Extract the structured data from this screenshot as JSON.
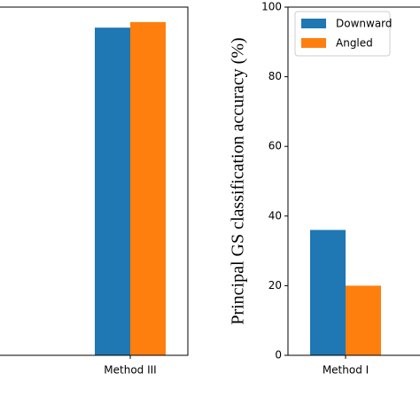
{
  "chart_data": [
    {
      "type": "bar",
      "categories": [
        "Method III"
      ],
      "ylim": [
        0,
        100
      ],
      "series": [
        {
          "name": "Downward",
          "color": "#1f77b4",
          "values": [
            94.1
          ]
        },
        {
          "name": "Angled",
          "color": "#ff7f0e",
          "values": [
            95.7
          ]
        }
      ]
    },
    {
      "type": "bar",
      "y_label": "Principal GS classification accuracy (%)",
      "categories": [
        "Method I"
      ],
      "ylim": [
        0,
        100
      ],
      "yticks": [
        0,
        20,
        40,
        60,
        80,
        100
      ],
      "legend": "upper left",
      "series": [
        {
          "name": "Downward",
          "color": "#1f77b4",
          "values": [
            36
          ]
        },
        {
          "name": "Angled",
          "color": "#ff7f0e",
          "values": [
            20
          ]
        }
      ]
    }
  ]
}
